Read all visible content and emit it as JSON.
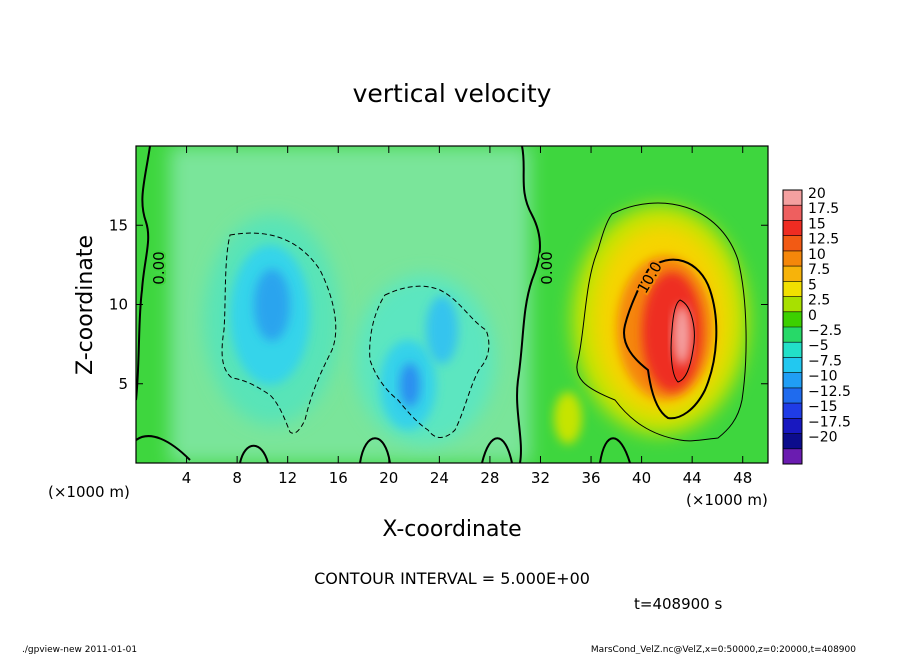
{
  "chart_data": {
    "type": "heatmap",
    "title": "vertical velocity",
    "xlabel": "X-coordinate",
    "ylabel": "Z-coordinate",
    "x_unit": "(×1000 m)",
    "xlim": [
      0,
      50
    ],
    "ylim": [
      0,
      20
    ],
    "x_ticks": [
      "4",
      "8",
      "12",
      "16",
      "20",
      "24",
      "28",
      "32",
      "36",
      "40",
      "44",
      "48"
    ],
    "y_ticks": [
      "5",
      "10",
      "15"
    ],
    "colorbar_labels": [
      "20",
      "17.5",
      "15",
      "12.5",
      "10",
      "7.5",
      "5",
      "2.5",
      "0",
      "−2.5",
      "−5",
      "−7.5",
      "−10",
      "−12.5",
      "−15",
      "−17.5",
      "−20"
    ],
    "colorbar_colors": [
      "#f4a0a0",
      "#ee5f5f",
      "#ef2c22",
      "#f25a14",
      "#f5870a",
      "#f7b30a",
      "#f2e000",
      "#a8e000",
      "#3cd000",
      "#27d968",
      "#22e0c8",
      "#22c8f0",
      "#209ef5",
      "#1f6bee",
      "#1f3ce6",
      "#1818c0",
      "#0c0c8c",
      "#6a1cb0"
    ],
    "contour_labels": [
      "0.00",
      "0.00",
      "10.0"
    ],
    "contour_interval_text": "CONTOUR INTERVAL = 5.000E+00",
    "time_text": "t=408900 s",
    "field_features": [
      {
        "kind": "updraft-max",
        "x": 43,
        "z": 7.5,
        "value": 18
      },
      {
        "kind": "downdraft",
        "x": 10.5,
        "z": 10,
        "value": -10
      },
      {
        "kind": "downdraft",
        "x": 21.5,
        "z": 5,
        "value": -10
      },
      {
        "kind": "downdraft",
        "x": 24.5,
        "z": 8,
        "value": -7.5
      }
    ]
  },
  "footer": {
    "left": "./gpview-new  2011-01-01",
    "right": "MarsCond_VelZ.nc@VelZ,x=0:50000,z=0:20000,t=408900"
  }
}
